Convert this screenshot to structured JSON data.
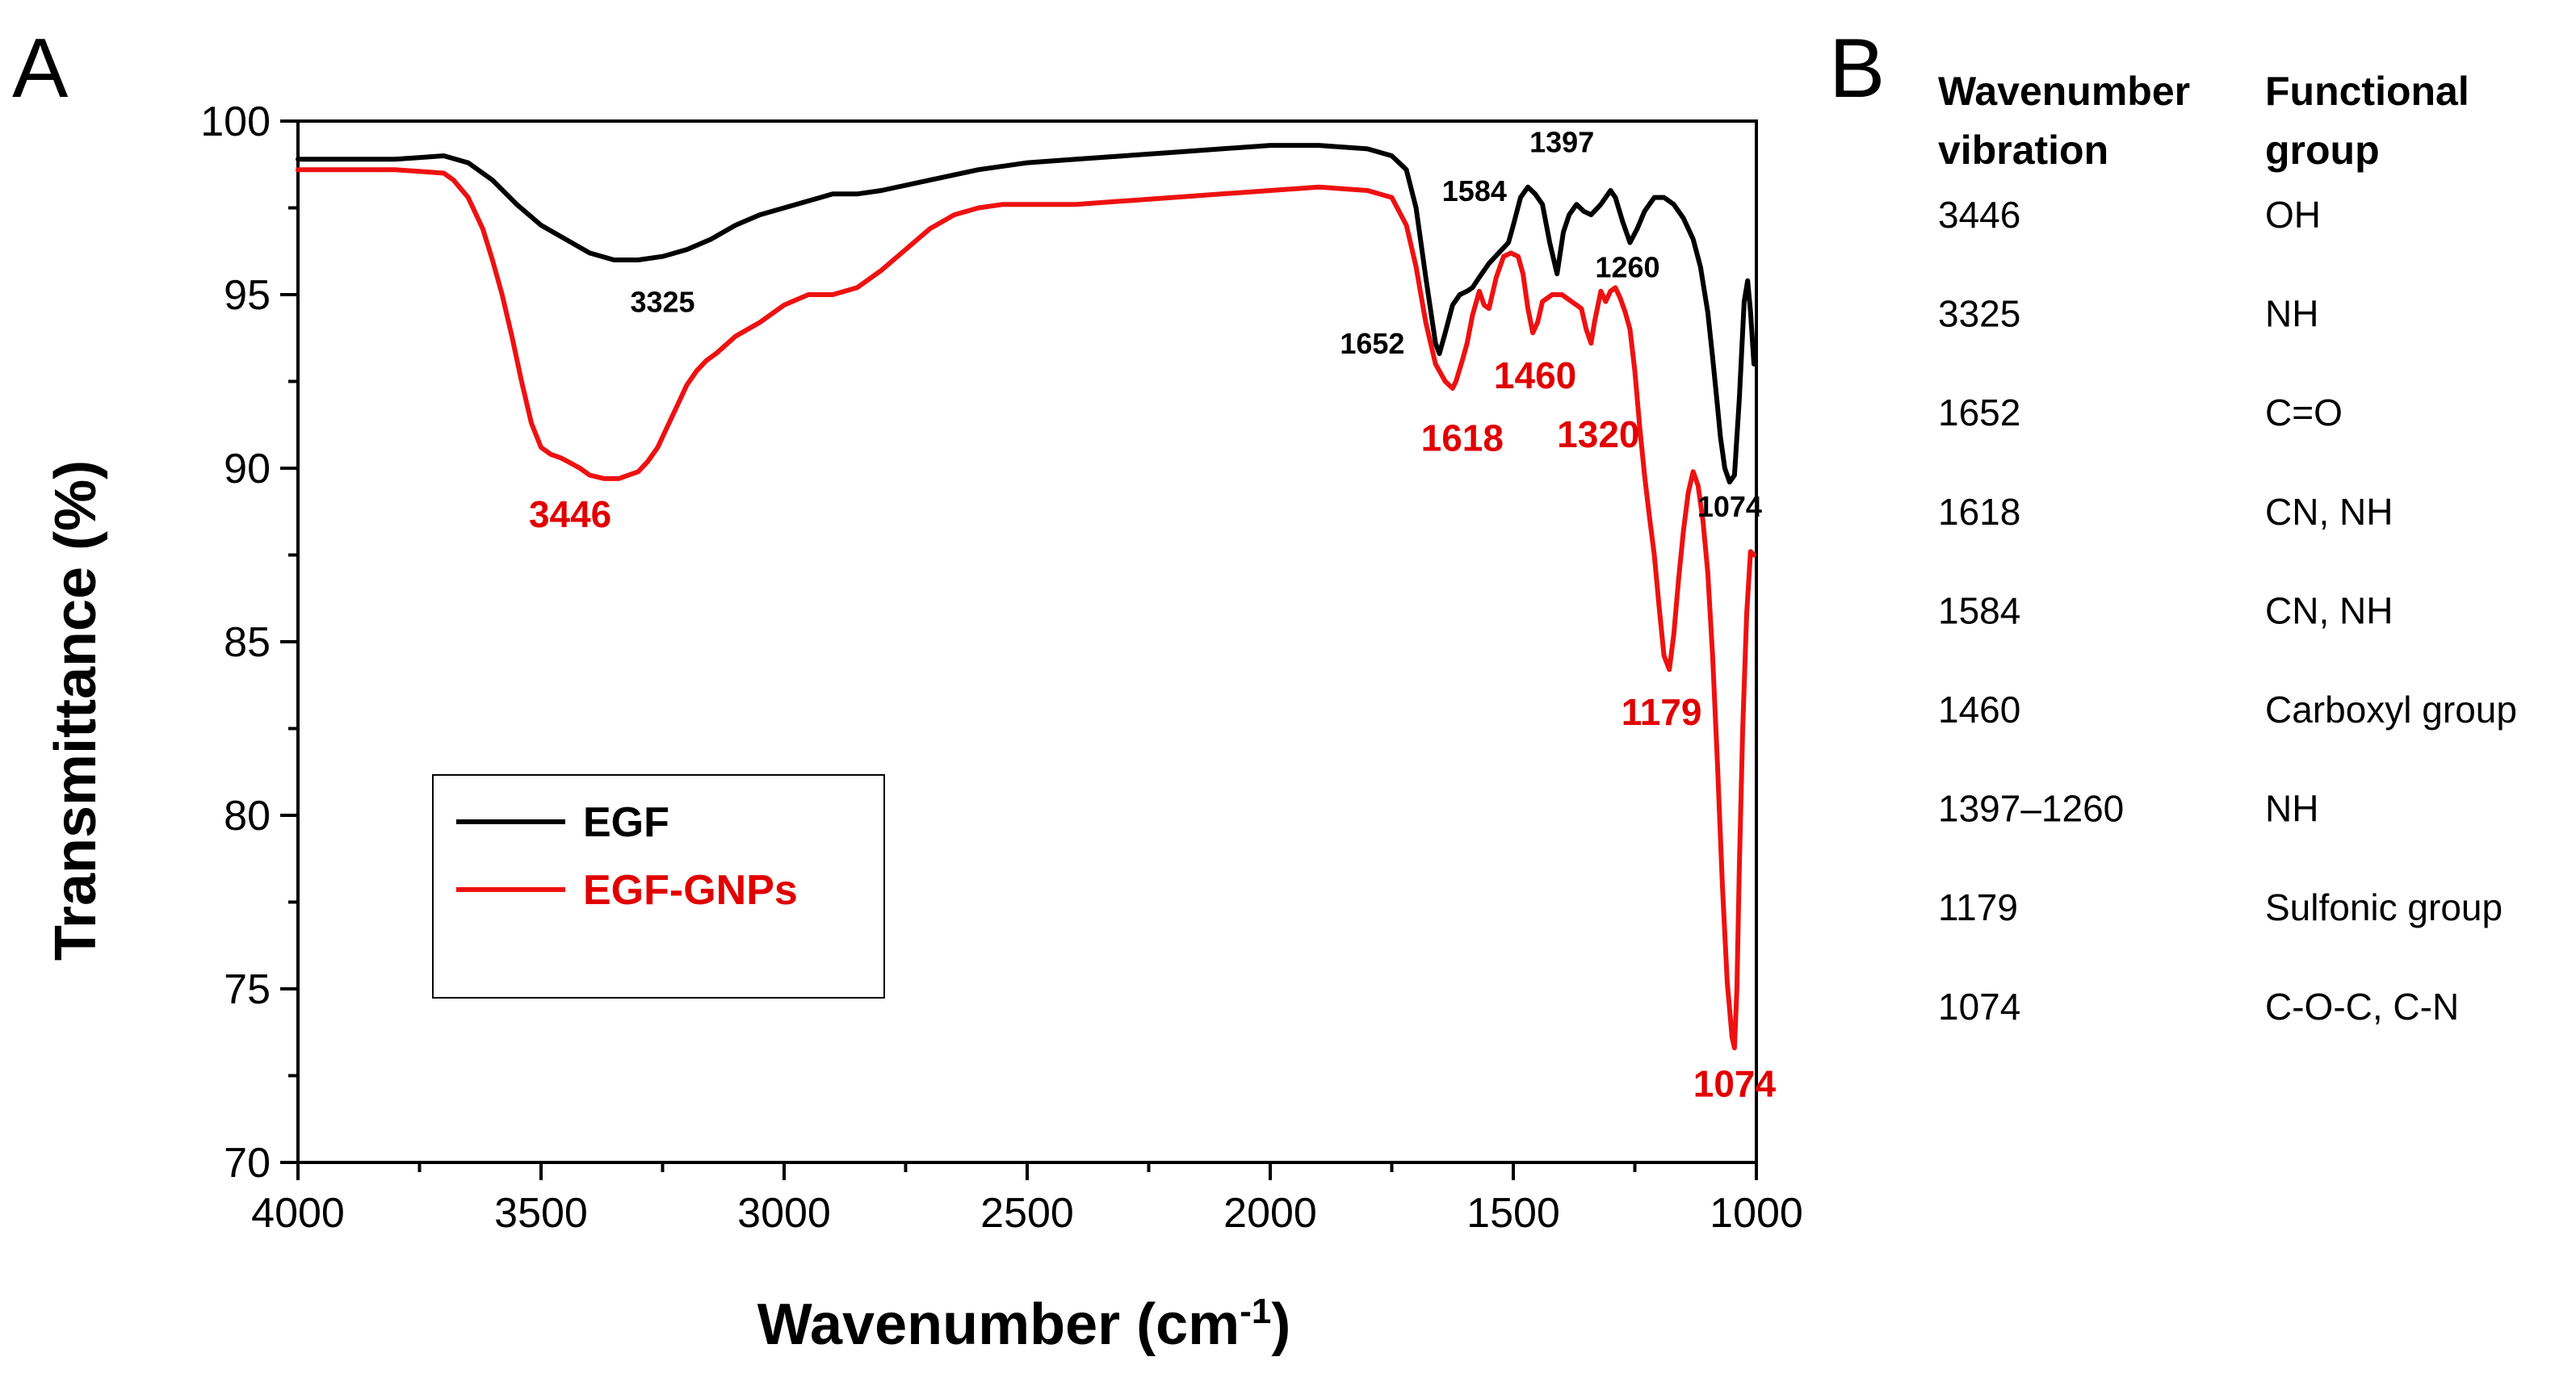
{
  "panel_a": {
    "letter": "A"
  },
  "panel_b": {
    "letter": "B",
    "headers": {
      "col1_line1": "Wavenumber",
      "col1_line2": "vibration",
      "col2_line1": "Functional",
      "col2_line2": "group"
    },
    "rows": [
      {
        "wavenumber": "3446",
        "group": "OH"
      },
      {
        "wavenumber": "3325",
        "group": "NH"
      },
      {
        "wavenumber": "1652",
        "group": "C=O"
      },
      {
        "wavenumber": "1618",
        "group": "CN, NH"
      },
      {
        "wavenumber": "1584",
        "group": "CN, NH"
      },
      {
        "wavenumber": "1460",
        "group": "Carboxyl group"
      },
      {
        "wavenumber": "1397–1260",
        "group": "NH"
      },
      {
        "wavenumber": "1179",
        "group": "Sulfonic group"
      },
      {
        "wavenumber": "1074",
        "group": "C-O-C, C-N"
      }
    ]
  },
  "chart_data": {
    "type": "line",
    "title": "",
    "xlabel": "Wavenumber (cm",
    "xlabel_sup": "-1",
    "xlabel_close": ")",
    "ylabel": "Transmittance (%)",
    "xlim": [
      4000,
      1000
    ],
    "ylim": [
      70,
      100
    ],
    "x_ticks": [
      4000,
      3500,
      3000,
      2500,
      2000,
      1500,
      1000
    ],
    "y_ticks": [
      70,
      75,
      80,
      85,
      90,
      95,
      100
    ],
    "legend": {
      "placement": "lower-left"
    },
    "series": [
      {
        "name": "EGF",
        "color": "#000000",
        "points": [
          [
            4000,
            98.9
          ],
          [
            3900,
            98.9
          ],
          [
            3800,
            98.9
          ],
          [
            3700,
            99.0
          ],
          [
            3650,
            98.8
          ],
          [
            3600,
            98.3
          ],
          [
            3550,
            97.6
          ],
          [
            3500,
            97.0
          ],
          [
            3450,
            96.6
          ],
          [
            3400,
            96.2
          ],
          [
            3350,
            96.0
          ],
          [
            3300,
            96.0
          ],
          [
            3250,
            96.1
          ],
          [
            3200,
            96.3
          ],
          [
            3150,
            96.6
          ],
          [
            3100,
            97.0
          ],
          [
            3050,
            97.3
          ],
          [
            3000,
            97.5
          ],
          [
            2950,
            97.7
          ],
          [
            2900,
            97.9
          ],
          [
            2850,
            97.9
          ],
          [
            2800,
            98.0
          ],
          [
            2700,
            98.3
          ],
          [
            2600,
            98.6
          ],
          [
            2500,
            98.8
          ],
          [
            2400,
            98.9
          ],
          [
            2300,
            99.0
          ],
          [
            2200,
            99.1
          ],
          [
            2100,
            99.2
          ],
          [
            2000,
            99.3
          ],
          [
            1900,
            99.3
          ],
          [
            1800,
            99.2
          ],
          [
            1750,
            99.0
          ],
          [
            1720,
            98.6
          ],
          [
            1700,
            97.5
          ],
          [
            1680,
            95.5
          ],
          [
            1660,
            93.6
          ],
          [
            1652,
            93.3
          ],
          [
            1640,
            93.9
          ],
          [
            1625,
            94.7
          ],
          [
            1610,
            95.0
          ],
          [
            1595,
            95.1
          ],
          [
            1584,
            95.2
          ],
          [
            1570,
            95.5
          ],
          [
            1550,
            95.9
          ],
          [
            1530,
            96.2
          ],
          [
            1510,
            96.5
          ],
          [
            1500,
            97.0
          ],
          [
            1485,
            97.8
          ],
          [
            1470,
            98.1
          ],
          [
            1455,
            97.9
          ],
          [
            1440,
            97.6
          ],
          [
            1425,
            96.5
          ],
          [
            1410,
            95.6
          ],
          [
            1397,
            96.8
          ],
          [
            1385,
            97.3
          ],
          [
            1370,
            97.6
          ],
          [
            1355,
            97.4
          ],
          [
            1340,
            97.3
          ],
          [
            1320,
            97.6
          ],
          [
            1300,
            98.0
          ],
          [
            1290,
            97.8
          ],
          [
            1275,
            97.1
          ],
          [
            1260,
            96.5
          ],
          [
            1245,
            96.9
          ],
          [
            1230,
            97.4
          ],
          [
            1210,
            97.8
          ],
          [
            1190,
            97.8
          ],
          [
            1170,
            97.6
          ],
          [
            1150,
            97.2
          ],
          [
            1130,
            96.6
          ],
          [
            1115,
            95.8
          ],
          [
            1100,
            94.5
          ],
          [
            1090,
            93.2
          ],
          [
            1080,
            91.8
          ],
          [
            1074,
            90.9
          ],
          [
            1065,
            90.0
          ],
          [
            1055,
            89.6
          ],
          [
            1045,
            89.8
          ],
          [
            1035,
            92.0
          ],
          [
            1025,
            94.8
          ],
          [
            1018,
            95.4
          ],
          [
            1012,
            94.5
          ],
          [
            1005,
            93.0
          ]
        ]
      },
      {
        "name": "EGF-GNPs",
        "color": "#ee1111",
        "points": [
          [
            4000,
            98.6
          ],
          [
            3900,
            98.6
          ],
          [
            3800,
            98.6
          ],
          [
            3700,
            98.5
          ],
          [
            3680,
            98.3
          ],
          [
            3650,
            97.8
          ],
          [
            3620,
            96.9
          ],
          [
            3600,
            96.0
          ],
          [
            3580,
            95.0
          ],
          [
            3560,
            93.8
          ],
          [
            3540,
            92.5
          ],
          [
            3520,
            91.3
          ],
          [
            3500,
            90.6
          ],
          [
            3480,
            90.4
          ],
          [
            3460,
            90.3
          ],
          [
            3446,
            90.2
          ],
          [
            3420,
            90.0
          ],
          [
            3400,
            89.8
          ],
          [
            3370,
            89.7
          ],
          [
            3340,
            89.7
          ],
          [
            3320,
            89.8
          ],
          [
            3300,
            89.9
          ],
          [
            3280,
            90.2
          ],
          [
            3260,
            90.6
          ],
          [
            3240,
            91.2
          ],
          [
            3220,
            91.8
          ],
          [
            3200,
            92.4
          ],
          [
            3180,
            92.8
          ],
          [
            3160,
            93.1
          ],
          [
            3140,
            93.3
          ],
          [
            3100,
            93.8
          ],
          [
            3050,
            94.2
          ],
          [
            3000,
            94.7
          ],
          [
            2950,
            95.0
          ],
          [
            2900,
            95.0
          ],
          [
            2850,
            95.2
          ],
          [
            2800,
            95.7
          ],
          [
            2750,
            96.3
          ],
          [
            2700,
            96.9
          ],
          [
            2650,
            97.3
          ],
          [
            2600,
            97.5
          ],
          [
            2550,
            97.6
          ],
          [
            2500,
            97.6
          ],
          [
            2400,
            97.6
          ],
          [
            2300,
            97.7
          ],
          [
            2200,
            97.8
          ],
          [
            2100,
            97.9
          ],
          [
            2000,
            98.0
          ],
          [
            1900,
            98.1
          ],
          [
            1800,
            98.0
          ],
          [
            1750,
            97.8
          ],
          [
            1720,
            97.0
          ],
          [
            1700,
            95.8
          ],
          [
            1680,
            94.2
          ],
          [
            1660,
            93.0
          ],
          [
            1640,
            92.5
          ],
          [
            1625,
            92.3
          ],
          [
            1618,
            92.5
          ],
          [
            1605,
            93.1
          ],
          [
            1595,
            93.6
          ],
          [
            1584,
            94.4
          ],
          [
            1570,
            95.1
          ],
          [
            1560,
            94.7
          ],
          [
            1550,
            94.6
          ],
          [
            1535,
            95.5
          ],
          [
            1520,
            96.1
          ],
          [
            1505,
            96.2
          ],
          [
            1490,
            96.1
          ],
          [
            1480,
            95.6
          ],
          [
            1470,
            94.6
          ],
          [
            1460,
            93.9
          ],
          [
            1450,
            94.2
          ],
          [
            1440,
            94.8
          ],
          [
            1420,
            95.0
          ],
          [
            1400,
            95.0
          ],
          [
            1380,
            94.8
          ],
          [
            1360,
            94.6
          ],
          [
            1350,
            94.0
          ],
          [
            1340,
            93.6
          ],
          [
            1333,
            94.2
          ],
          [
            1320,
            95.1
          ],
          [
            1310,
            94.8
          ],
          [
            1300,
            95.1
          ],
          [
            1290,
            95.2
          ],
          [
            1280,
            94.9
          ],
          [
            1270,
            94.5
          ],
          [
            1260,
            94.0
          ],
          [
            1250,
            92.8
          ],
          [
            1240,
            91.2
          ],
          [
            1230,
            89.8
          ],
          [
            1220,
            88.6
          ],
          [
            1210,
            87.5
          ],
          [
            1200,
            86.0
          ],
          [
            1190,
            84.6
          ],
          [
            1179,
            84.2
          ],
          [
            1170,
            85.2
          ],
          [
            1160,
            86.8
          ],
          [
            1150,
            88.2
          ],
          [
            1140,
            89.3
          ],
          [
            1130,
            89.9
          ],
          [
            1120,
            89.5
          ],
          [
            1110,
            88.5
          ],
          [
            1100,
            87.0
          ],
          [
            1090,
            84.6
          ],
          [
            1080,
            81.5
          ],
          [
            1070,
            78.0
          ],
          [
            1060,
            75.2
          ],
          [
            1050,
            73.6
          ],
          [
            1045,
            73.3
          ],
          [
            1040,
            75.0
          ],
          [
            1035,
            78.5
          ],
          [
            1028,
            82.5
          ],
          [
            1020,
            85.8
          ],
          [
            1012,
            87.6
          ],
          [
            1005,
            87.5
          ]
        ]
      }
    ],
    "annotations": [
      {
        "text": "3325",
        "color": "black",
        "x": 3250,
        "y": 94.5
      },
      {
        "text": "1652",
        "color": "black",
        "x": 1790,
        "y": 93.3
      },
      {
        "text": "1584",
        "color": "black",
        "x": 1580,
        "y": 97.7
      },
      {
        "text": "1397",
        "color": "black",
        "x": 1400,
        "y": 99.1
      },
      {
        "text": "1260",
        "color": "black",
        "x": 1265,
        "y": 95.5
      },
      {
        "text": "1074",
        "color": "black",
        "x": 1055,
        "y": 88.6
      },
      {
        "text": "3446",
        "color": "red",
        "x": 3440,
        "y": 88.3
      },
      {
        "text": "1618",
        "color": "red",
        "x": 1605,
        "y": 90.5
      },
      {
        "text": "1460",
        "color": "red",
        "x": 1455,
        "y": 92.3
      },
      {
        "text": "1320",
        "color": "red",
        "x": 1325,
        "y": 90.6
      },
      {
        "text": "1179",
        "color": "red",
        "x": 1195,
        "y": 82.6
      },
      {
        "text": "1074",
        "color": "red",
        "x": 1045,
        "y": 71.9
      }
    ]
  }
}
